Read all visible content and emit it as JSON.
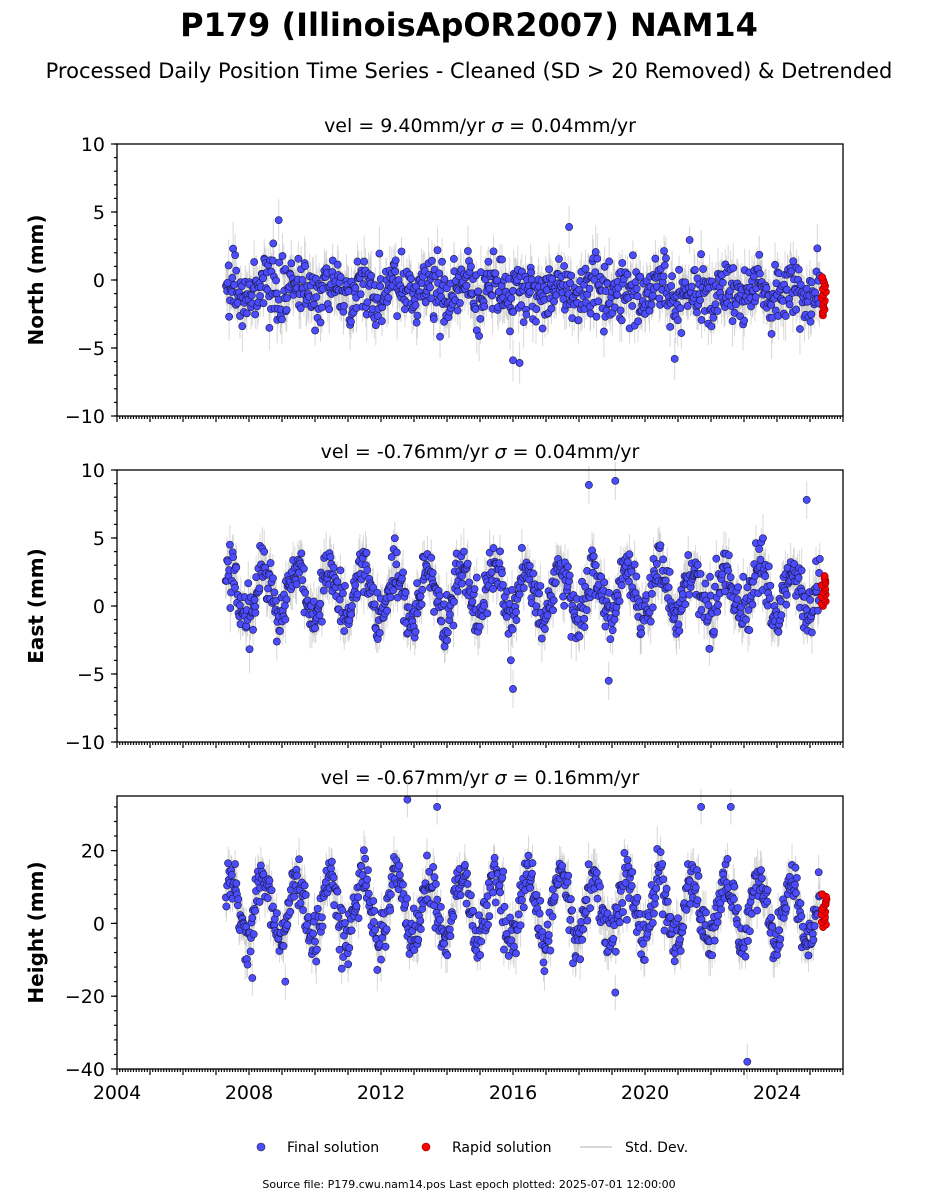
{
  "title": "P179 (IllinoisApOR2007) NAM14",
  "subtitle": "Processed Daily Position Time Series - Cleaned (SD > 20 Removed) & Detrended",
  "legend": {
    "final": "Final solution",
    "rapid": "Rapid solution",
    "std": "Std. Dev."
  },
  "footer": "Source file: P179.cwu.nam14.pos  Last epoch plotted: 2025-07-01 12:00:00",
  "colors": {
    "final_fill": "#4b4bff",
    "final_edge": "#1a1a40",
    "rapid_fill": "#ff0000",
    "rapid_edge": "#800000",
    "std_dev": "#b8b8b8"
  },
  "chart_data": [
    {
      "type": "scatter",
      "component": "North",
      "title_main": "vel = 9.40mm/yr   ",
      "title_sigma": "σ",
      "title_tail": " = 0.04mm/yr",
      "ylabel": "North (mm)",
      "xlim": [
        2004,
        2026
      ],
      "ylim": [
        -10,
        10
      ],
      "yticks": [
        -10,
        -5,
        0,
        5,
        10
      ],
      "xticks": [],
      "grid": false,
      "series": [
        {
          "name": "Final solution",
          "x_range": [
            2007.3,
            2025.3
          ],
          "center": -0.8,
          "seasonal_amplitude": 0.6,
          "noise_sd": 1.1,
          "typical_range": [
            -5,
            4
          ],
          "outliers": [
            {
              "x": 2016.0,
              "y": -5.9
            },
            {
              "x": 2016.2,
              "y": -6.1
            },
            {
              "x": 2020.9,
              "y": -5.8
            },
            {
              "x": 2008.9,
              "y": 4.4
            },
            {
              "x": 2017.7,
              "y": 3.9
            }
          ]
        },
        {
          "name": "Rapid solution",
          "x_range": [
            2025.35,
            2025.5
          ],
          "y_range": [
            -2.6,
            0.2
          ]
        }
      ]
    },
    {
      "type": "scatter",
      "component": "East",
      "title_main": "vel = -0.76mm/yr   ",
      "title_sigma": "σ",
      "title_tail": " = 0.04mm/yr",
      "ylabel": "East (mm)",
      "xlim": [
        2004,
        2026
      ],
      "ylim": [
        -10,
        10
      ],
      "yticks": [
        -10,
        -5,
        0,
        5,
        10
      ],
      "xticks": [],
      "grid": false,
      "series": [
        {
          "name": "Final solution",
          "x_range": [
            2007.3,
            2025.3
          ],
          "center": 1.0,
          "seasonal_amplitude": 1.8,
          "noise_sd": 1.0,
          "typical_range": [
            -4,
            6
          ],
          "outliers": [
            {
              "x": 2018.3,
              "y": 8.9
            },
            {
              "x": 2019.1,
              "y": 9.2
            },
            {
              "x": 2016.0,
              "y": -6.1
            },
            {
              "x": 2018.9,
              "y": -5.5
            },
            {
              "x": 2024.9,
              "y": 7.8
            }
          ]
        },
        {
          "name": "Rapid solution",
          "x_range": [
            2025.35,
            2025.5
          ],
          "y_range": [
            0,
            2.2
          ]
        }
      ]
    },
    {
      "type": "scatter",
      "component": "Height",
      "title_main": "vel = -0.67mm/yr   ",
      "title_sigma": "σ",
      "title_tail": " = 0.16mm/yr",
      "ylabel": "Height (mm)",
      "xlim": [
        2004,
        2026
      ],
      "ylim": [
        -40,
        35
      ],
      "yticks": [
        -40,
        -20,
        0,
        20
      ],
      "xticks": [
        2004,
        2008,
        2012,
        2016,
        2020,
        2024
      ],
      "grid": false,
      "series": [
        {
          "name": "Final solution",
          "x_range": [
            2007.3,
            2025.3
          ],
          "center": 4,
          "seasonal_amplitude": 9,
          "noise_sd": 3.5,
          "typical_range": [
            -15,
            28
          ],
          "outliers": [
            {
              "x": 2012.8,
              "y": 34
            },
            {
              "x": 2013.7,
              "y": 32
            },
            {
              "x": 2021.7,
              "y": 32
            },
            {
              "x": 2022.6,
              "y": 32
            },
            {
              "x": 2023.1,
              "y": -38
            },
            {
              "x": 2019.1,
              "y": -19
            },
            {
              "x": 2008.1,
              "y": -15
            },
            {
              "x": 2009.1,
              "y": -16
            }
          ]
        },
        {
          "name": "Rapid solution",
          "x_range": [
            2025.35,
            2025.5
          ],
          "y_range": [
            -1,
            8
          ]
        }
      ]
    }
  ]
}
